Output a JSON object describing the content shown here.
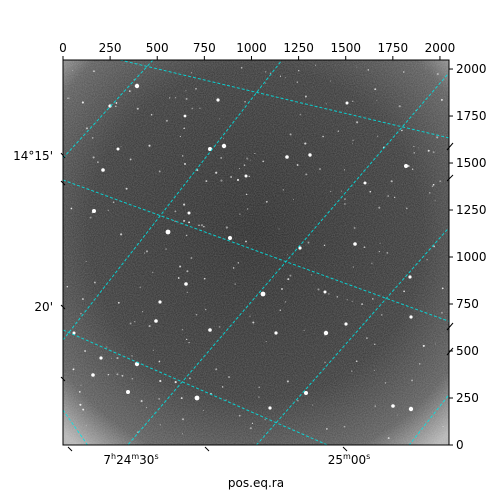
{
  "figure": {
    "xlabel": "pos.eq.ra",
    "ra_ticks": [
      {
        "h": "7",
        "m": "24",
        "s": "30"
      },
      {
        "m": "25",
        "s": "00"
      }
    ],
    "dec_ticks": [
      "14°15'",
      "20'"
    ],
    "pixel_x_ticks": [
      "0",
      "250",
      "500",
      "750",
      "1000",
      "1250",
      "1500",
      "1750",
      "2000"
    ],
    "pixel_y_ticks": [
      "0",
      "250",
      "500",
      "750",
      "1000",
      "1250",
      "1500",
      "1750",
      "2000"
    ]
  },
  "image": {
    "pixel_range": [
      0,
      2048
    ],
    "background_color": "#3a3a3a",
    "edge_color": "#9a9a9a",
    "star_color": "#ffffff"
  },
  "grid": {
    "color": "#00e5e5",
    "style": "dashed"
  }
}
